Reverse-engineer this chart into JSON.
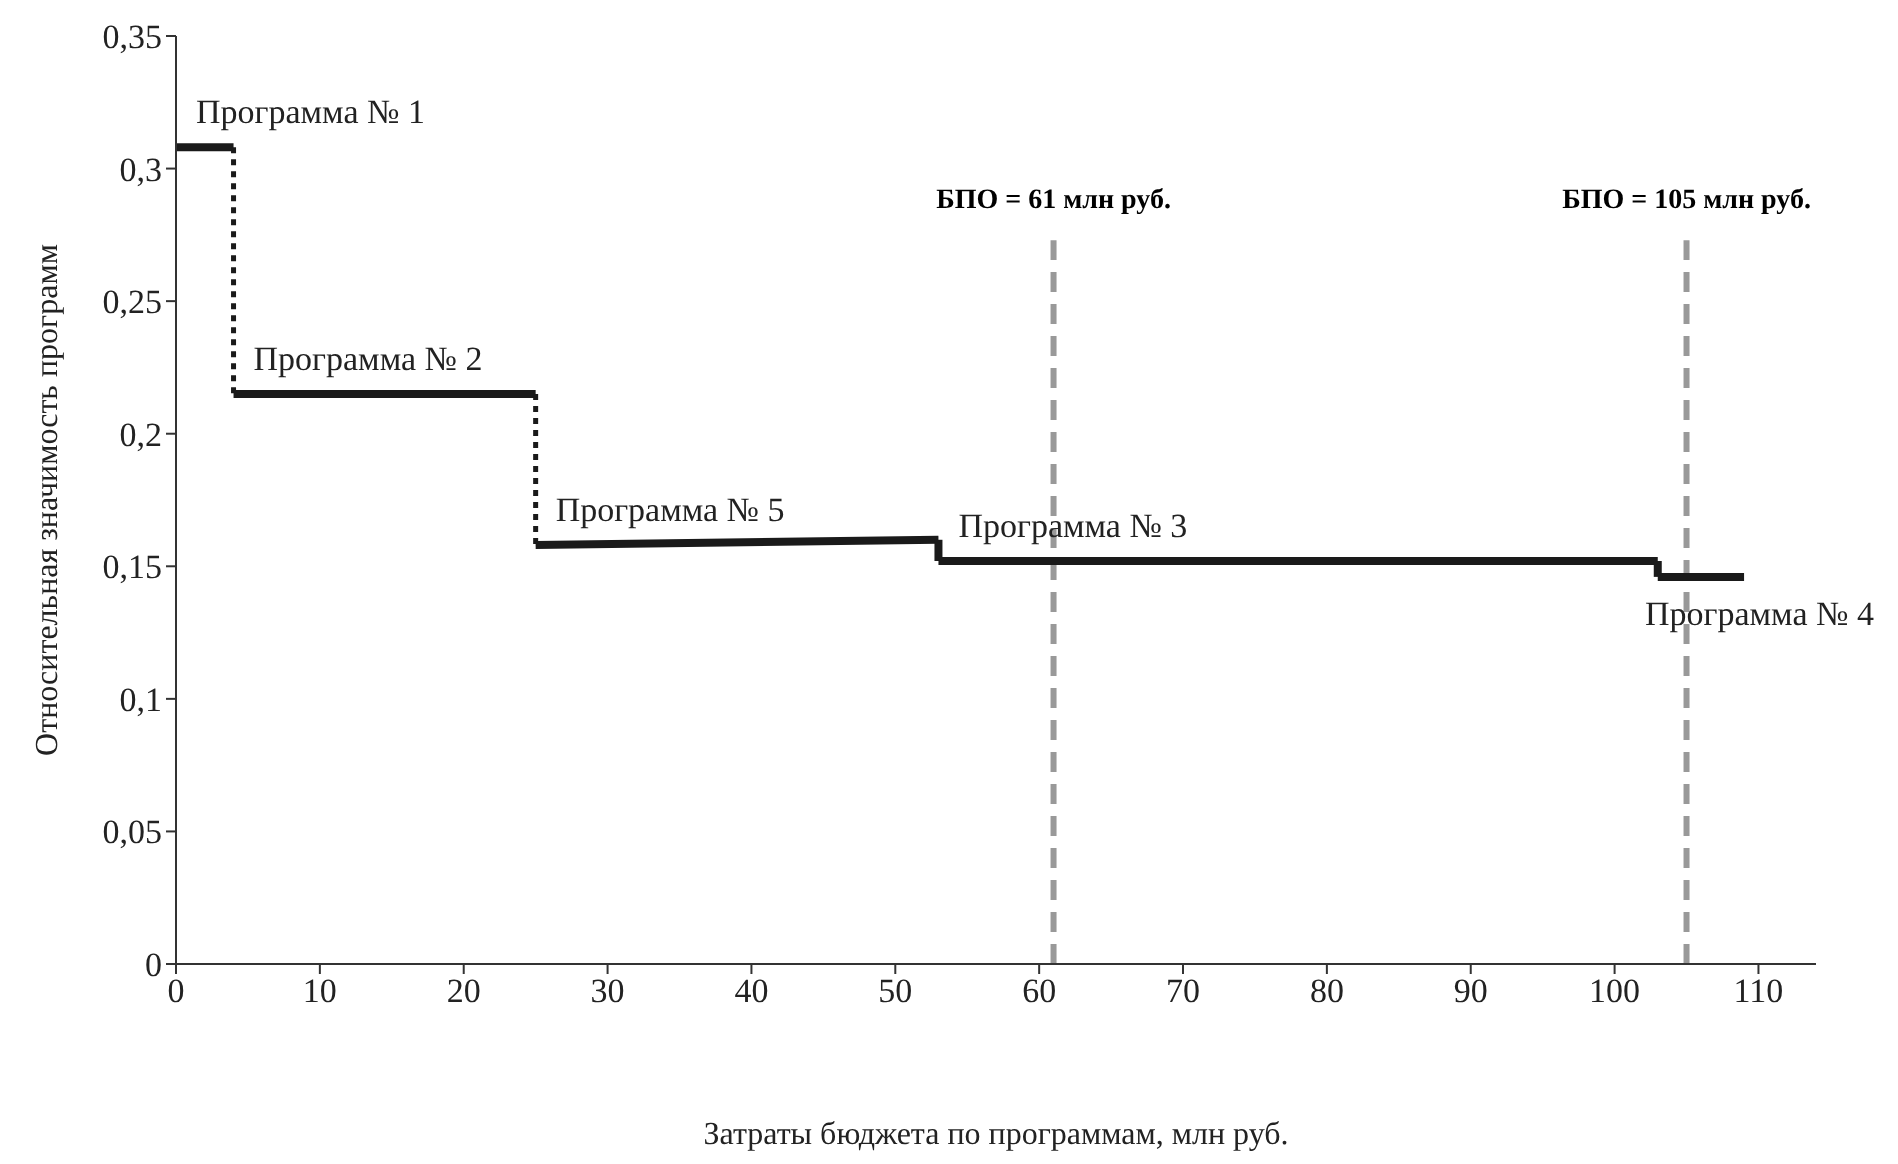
{
  "chart_data": {
    "type": "line",
    "xlabel": "Затраты бюджета по программам, млн руб.",
    "ylabel": "Относительная значимость программ",
    "xlim": [
      0,
      114
    ],
    "xticks": [
      0,
      10,
      20,
      30,
      40,
      50,
      60,
      70,
      80,
      90,
      100,
      110
    ],
    "ylim": [
      0,
      0.35
    ],
    "yticks": [
      {
        "value": 0,
        "label": "0"
      },
      {
        "value": 0.05,
        "label": "0,05"
      },
      {
        "value": 0.1,
        "label": "0,1"
      },
      {
        "value": 0.15,
        "label": "0,15"
      },
      {
        "value": 0.2,
        "label": "0,2"
      },
      {
        "value": 0.25,
        "label": "0,25"
      },
      {
        "value": 0.3,
        "label": "0,3"
      },
      {
        "value": 0.35,
        "label": "0,35"
      }
    ],
    "grid": false,
    "legend": false,
    "marker": "none",
    "series": [
      {
        "name": "Программа № 1",
        "color": "#1a1a1a",
        "x": [
          0,
          4
        ],
        "values": [
          0.308,
          0.308
        ]
      },
      {
        "color": "#1a1a1a",
        "line_style": "dotted",
        "x": [
          4,
          4
        ],
        "values": [
          0.308,
          0.215
        ]
      },
      {
        "name": "Программа № 2",
        "color": "#1a1a1a",
        "x": [
          4,
          25
        ],
        "values": [
          0.215,
          0.215
        ]
      },
      {
        "color": "#1a1a1a",
        "line_style": "dotted",
        "x": [
          25,
          25
        ],
        "values": [
          0.215,
          0.158
        ]
      },
      {
        "name": "Программа № 5",
        "color": "#1a1a1a",
        "x": [
          25,
          53
        ],
        "values": [
          0.158,
          0.16
        ]
      },
      {
        "color": "#1a1a1a",
        "x": [
          53,
          53
        ],
        "values": [
          0.16,
          0.152
        ]
      },
      {
        "name": "Программа № 3",
        "color": "#1a1a1a",
        "x": [
          53,
          103
        ],
        "values": [
          0.152,
          0.152
        ]
      },
      {
        "color": "#1a1a1a",
        "x": [
          103,
          103
        ],
        "values": [
          0.152,
          0.146
        ]
      },
      {
        "name": "Программа № 4",
        "color": "#1a1a1a",
        "x": [
          103,
          109
        ],
        "values": [
          0.146,
          0.146
        ]
      }
    ],
    "ref_lines": [
      {
        "axis": "x",
        "value": 61,
        "label": "БПО = 61 млн руб.",
        "color": "#999999",
        "line_style": "dashed"
      },
      {
        "axis": "x",
        "value": 105,
        "label": "БПО = 105 млн руб.",
        "color": "#999999",
        "line_style": "dashed"
      }
    ]
  }
}
